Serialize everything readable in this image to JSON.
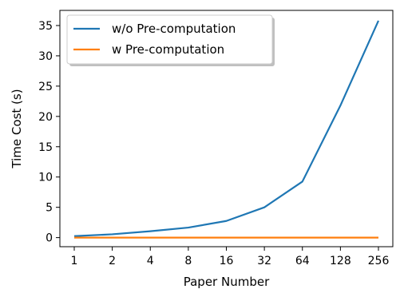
{
  "chart_data": {
    "type": "line",
    "title": "",
    "xlabel": "Paper Number",
    "ylabel": "Time Cost (s)",
    "categories": [
      "1",
      "2",
      "4",
      "8",
      "16",
      "32",
      "64",
      "128",
      "256"
    ],
    "ylim": [
      -1.5,
      37.5
    ],
    "yticks": [
      0,
      5,
      10,
      15,
      20,
      25,
      30,
      35
    ],
    "grid": false,
    "legend_position": "top-left",
    "series": [
      {
        "name": "w/o Pre-computation",
        "color": "#1f77b4",
        "values": [
          0.25,
          0.55,
          1.05,
          1.65,
          2.75,
          5.0,
          9.25,
          21.8,
          35.8
        ]
      },
      {
        "name": "w Pre-computation",
        "color": "#ff7f0e",
        "values": [
          0.0,
          0.0,
          0.0,
          0.0,
          0.0,
          0.0,
          0.0,
          0.0,
          0.0
        ]
      }
    ]
  }
}
